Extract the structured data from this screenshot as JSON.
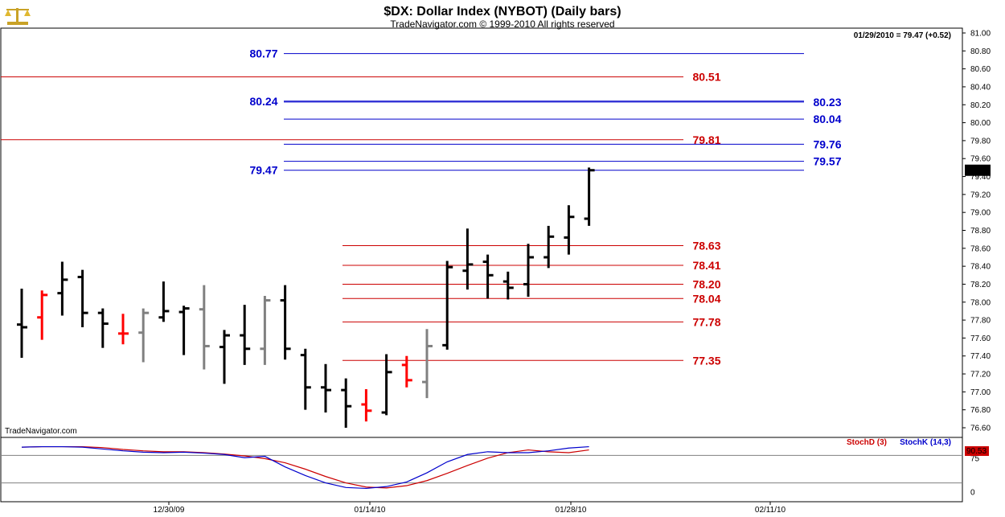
{
  "header": {
    "title": "$DX:  Dollar Index (NYBOT)  (Daily bars)",
    "subtitle": "TradeNavigator.com © 1999-2010 All rights reserved",
    "last_quote": "01/29/2010 = 79.47 (+0.52)",
    "watermark": "TradeNavigator.com"
  },
  "colors": {
    "blue": "#0000cc",
    "red": "#cc0000",
    "up_bar": "#000000",
    "down_bar": "#808080",
    "highlight_bar": "#ff0000"
  },
  "icons": {
    "logo": "balance-scale-logo"
  },
  "chart_data": [
    {
      "type": "ohlc",
      "ylim": [
        76.55,
        81.05
      ],
      "y_ticks": [
        "81.00",
        "80.80",
        "80.60",
        "80.40",
        "80.20",
        "80.00",
        "79.80",
        "79.60",
        "79.40",
        "79.20",
        "79.00",
        "78.80",
        "78.60",
        "78.40",
        "78.20",
        "78.00",
        "77.80",
        "77.60",
        "77.40",
        "77.20",
        "77.00",
        "76.80",
        "76.60"
      ],
      "x_ticks": [
        "12/30/09",
        "01/14/10",
        "01/28/10",
        "02/11/10"
      ],
      "last_price_tag": "79.47",
      "bars": [
        {
          "o": 77.75,
          "h": 78.15,
          "l": 77.38,
          "c": 77.72,
          "color": "black"
        },
        {
          "o": 77.83,
          "h": 78.13,
          "l": 77.58,
          "c": 78.08,
          "color": "red"
        },
        {
          "o": 78.1,
          "h": 78.45,
          "l": 77.85,
          "c": 78.25,
          "color": "black"
        },
        {
          "o": 78.28,
          "h": 78.36,
          "l": 77.72,
          "c": 77.88,
          "color": "black"
        },
        {
          "o": 77.88,
          "h": 77.93,
          "l": 77.49,
          "c": 77.76,
          "color": "black"
        },
        {
          "o": 77.65,
          "h": 77.87,
          "l": 77.53,
          "c": 77.65,
          "color": "red"
        },
        {
          "o": 77.66,
          "h": 77.93,
          "l": 77.33,
          "c": 77.88,
          "color": "gray"
        },
        {
          "o": 77.83,
          "h": 78.23,
          "l": 77.78,
          "c": 77.9,
          "color": "black"
        },
        {
          "o": 77.89,
          "h": 77.96,
          "l": 77.41,
          "c": 77.93,
          "color": "black"
        },
        {
          "o": 77.92,
          "h": 78.19,
          "l": 77.25,
          "c": 77.51,
          "color": "gray"
        },
        {
          "o": 77.5,
          "h": 77.69,
          "l": 77.09,
          "c": 77.63,
          "color": "black"
        },
        {
          "o": 77.63,
          "h": 77.97,
          "l": 77.3,
          "c": 77.48,
          "color": "black"
        },
        {
          "o": 77.48,
          "h": 78.07,
          "l": 77.3,
          "c": 78.02,
          "color": "gray"
        },
        {
          "o": 78.02,
          "h": 78.19,
          "l": 77.36,
          "c": 77.48,
          "color": "black"
        },
        {
          "o": 77.41,
          "h": 77.48,
          "l": 76.8,
          "c": 77.05,
          "color": "black"
        },
        {
          "o": 77.05,
          "h": 77.31,
          "l": 76.77,
          "c": 77.02,
          "color": "black"
        },
        {
          "o": 77.02,
          "h": 77.15,
          "l": 76.6,
          "c": 76.84,
          "color": "black"
        },
        {
          "o": 76.86,
          "h": 77.03,
          "l": 76.67,
          "c": 76.79,
          "color": "red"
        },
        {
          "o": 76.77,
          "h": 77.42,
          "l": 76.74,
          "c": 77.22,
          "color": "black"
        },
        {
          "o": 77.3,
          "h": 77.4,
          "l": 77.05,
          "c": 77.13,
          "color": "red"
        },
        {
          "o": 77.11,
          "h": 77.7,
          "l": 76.93,
          "c": 77.51,
          "color": "gray"
        },
        {
          "o": 77.52,
          "h": 78.46,
          "l": 77.47,
          "c": 78.39,
          "color": "black"
        },
        {
          "o": 78.35,
          "h": 78.82,
          "l": 78.14,
          "c": 78.42,
          "color": "black"
        },
        {
          "o": 78.45,
          "h": 78.53,
          "l": 78.04,
          "c": 78.3,
          "color": "black"
        },
        {
          "o": 78.23,
          "h": 78.34,
          "l": 78.03,
          "c": 78.16,
          "color": "black"
        },
        {
          "o": 78.2,
          "h": 78.65,
          "l": 78.06,
          "c": 78.5,
          "color": "black"
        },
        {
          "o": 78.5,
          "h": 78.85,
          "l": 78.38,
          "c": 78.73,
          "color": "black"
        },
        {
          "o": 78.72,
          "h": 79.08,
          "l": 78.53,
          "c": 78.95,
          "color": "black"
        },
        {
          "o": 78.93,
          "h": 79.5,
          "l": 78.85,
          "c": 79.47,
          "color": "black"
        }
      ],
      "levels": [
        {
          "value": 80.77,
          "label": "80.77",
          "color": "blue",
          "label_side": "left"
        },
        {
          "value": 80.51,
          "label": "80.51",
          "color": "red",
          "label_side": "right"
        },
        {
          "value": 80.24,
          "label": "80.24",
          "color": "blue",
          "label_side": "left"
        },
        {
          "value": 80.23,
          "label": "80.23",
          "color": "blue",
          "label_side": "right"
        },
        {
          "value": 80.04,
          "label": "80.04",
          "color": "blue",
          "label_side": "right"
        },
        {
          "value": 79.81,
          "label": "79.81",
          "color": "red",
          "label_side": "right"
        },
        {
          "value": 79.76,
          "label": "79.76",
          "color": "blue",
          "label_side": "right"
        },
        {
          "value": 79.57,
          "label": "79.57",
          "color": "blue",
          "label_side": "right"
        },
        {
          "value": 79.47,
          "label": "79.47",
          "color": "blue",
          "label_side": "left"
        },
        {
          "value": 78.63,
          "label": "78.63",
          "color": "red",
          "label_side": "right"
        },
        {
          "value": 78.41,
          "label": "78.41",
          "color": "red",
          "label_side": "right"
        },
        {
          "value": 78.2,
          "label": "78.20",
          "color": "red",
          "label_side": "right"
        },
        {
          "value": 78.04,
          "label": "78.04",
          "color": "red",
          "label_side": "right"
        },
        {
          "value": 77.78,
          "label": "77.78",
          "color": "red",
          "label_side": "right"
        },
        {
          "value": 77.35,
          "label": "77.35",
          "color": "red",
          "label_side": "right"
        }
      ]
    },
    {
      "type": "line",
      "name": "stochastic",
      "ylim": [
        0,
        100
      ],
      "y_ticks": [
        "75",
        "0"
      ],
      "reference_lines": [
        80,
        20
      ],
      "legend": [
        "StochD (3)",
        "StochK (14,3)"
      ],
      "last_value_tag": "90.53",
      "series": [
        {
          "name": "StochD (3)",
          "color": "red",
          "values": [
            98,
            99,
            99,
            99,
            97,
            93,
            90,
            88,
            88,
            86,
            83,
            79,
            73,
            64,
            50,
            34,
            20,
            11,
            9,
            14,
            25,
            41,
            58,
            74,
            86,
            92,
            88,
            86,
            92
          ]
        },
        {
          "name": "StochK (14,3)",
          "color": "blue",
          "values": [
            98,
            99,
            99,
            98,
            94,
            90,
            87,
            86,
            87,
            85,
            82,
            75,
            78,
            55,
            36,
            20,
            10,
            8,
            12,
            22,
            42,
            66,
            82,
            88,
            86,
            86,
            90,
            96,
            99
          ]
        }
      ]
    }
  ]
}
